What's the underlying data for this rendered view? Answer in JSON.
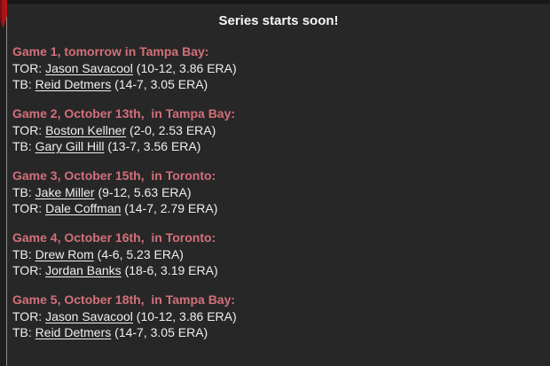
{
  "title": "Series starts soon!",
  "colors": {
    "panel_bg": "#272727",
    "outer_bg": "#1a1a1a",
    "header_text": "#d2707a",
    "body_text": "#efefef",
    "logo_red": "#b01315",
    "rail_line": "#8e8e8e"
  },
  "icons": {
    "logo_fragment": "red-shield-logo-fragment"
  },
  "games": [
    {
      "header": "Game 1, tomorrow in Tampa Bay:",
      "lines": [
        {
          "prefix": "TOR: ",
          "name": "Jason Savacool",
          "stats": " (10-12, 3.86 ERA)"
        },
        {
          "prefix": "TB: ",
          "name": "Reid Detmers",
          "stats": " (14-7, 3.05 ERA)"
        }
      ]
    },
    {
      "header": "Game 2, October 13th,  in Tampa Bay:",
      "lines": [
        {
          "prefix": "TOR: ",
          "name": "Boston Kellner",
          "stats": " (2-0, 2.53 ERA)"
        },
        {
          "prefix": "TB: ",
          "name": "Gary Gill Hill",
          "stats": " (13-7, 3.56 ERA)"
        }
      ]
    },
    {
      "header": "Game 3, October 15th,  in Toronto:",
      "lines": [
        {
          "prefix": "TB: ",
          "name": "Jake Miller",
          "stats": " (9-12, 5.63 ERA)"
        },
        {
          "prefix": "TOR: ",
          "name": "Dale Coffman",
          "stats": " (14-7, 2.79 ERA)"
        }
      ]
    },
    {
      "header": "Game 4, October 16th,  in Toronto:",
      "lines": [
        {
          "prefix": "TB: ",
          "name": "Drew Rom",
          "stats": " (4-6, 5.23 ERA)"
        },
        {
          "prefix": "TOR: ",
          "name": "Jordan Banks",
          "stats": " (18-6, 3.19 ERA)"
        }
      ]
    },
    {
      "header": "Game 5, October 18th,  in Tampa Bay:",
      "lines": [
        {
          "prefix": "TOR: ",
          "name": "Jason Savacool",
          "stats": " (10-12, 3.86 ERA)"
        },
        {
          "prefix": "TB: ",
          "name": "Reid Detmers",
          "stats": " (14-7, 3.05 ERA)"
        }
      ]
    }
  ]
}
